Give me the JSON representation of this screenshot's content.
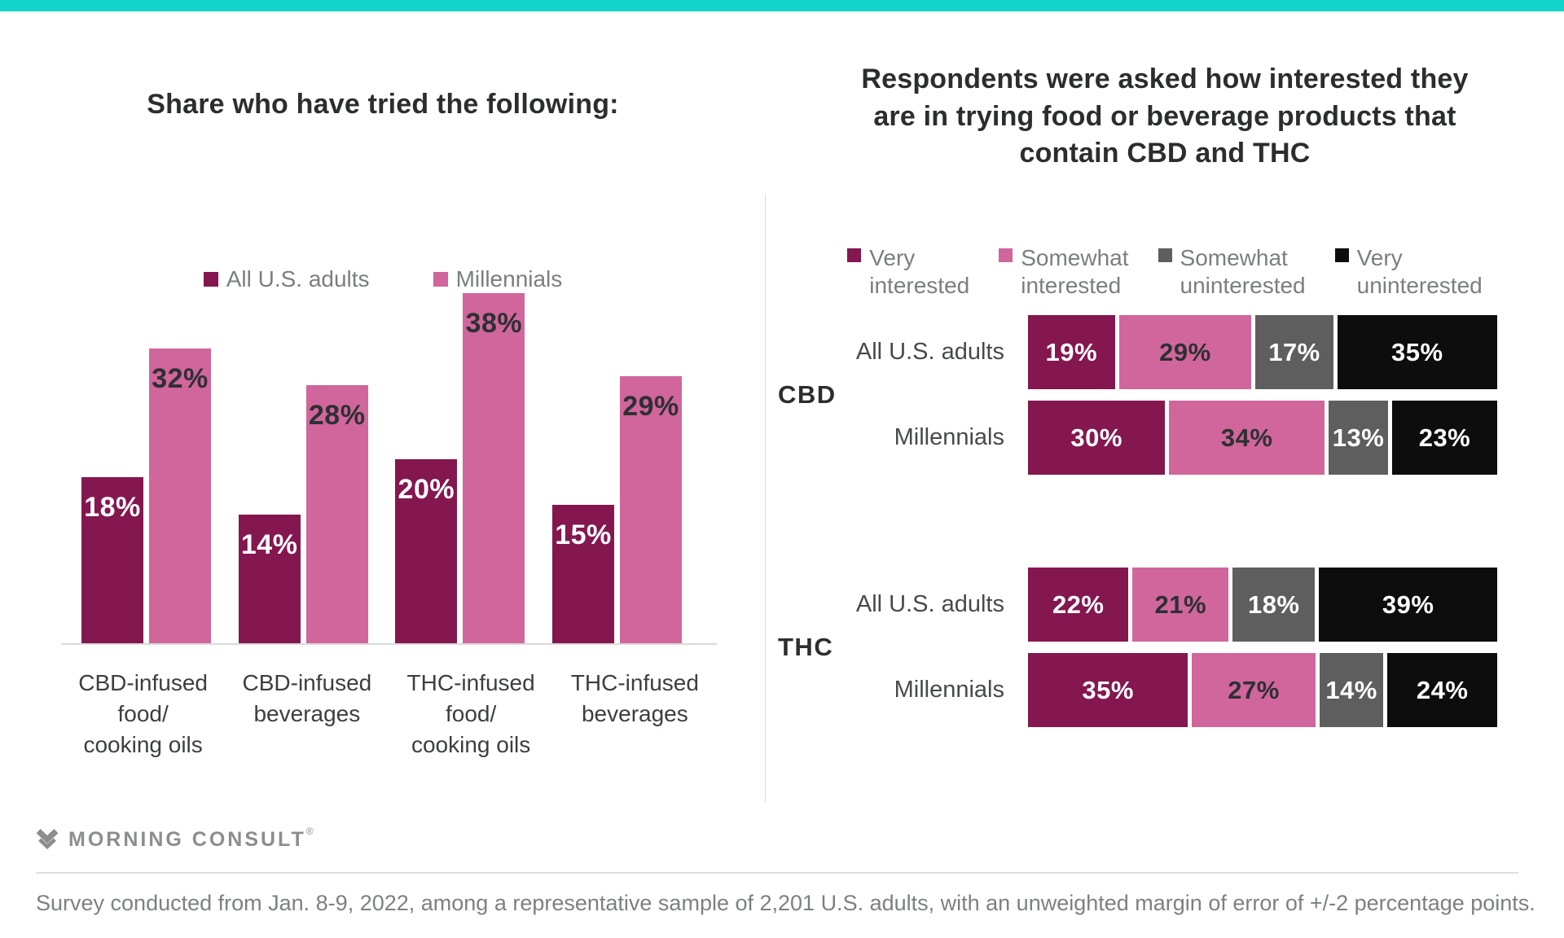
{
  "page": {
    "top_bar_color": "#11d3c9",
    "background": "#ffffff"
  },
  "chart_data": [
    {
      "type": "bar",
      "title": "Share who have tried the following:",
      "categories": [
        [
          "CBD-infused",
          "food/",
          "cooking oils"
        ],
        [
          "CBD-infused",
          "beverages"
        ],
        [
          "THC-infused",
          "food/",
          "cooking oils"
        ],
        [
          "THC-infused",
          "beverages"
        ]
      ],
      "series": [
        {
          "name": "All U.S. adults",
          "color": "#84174F",
          "label_color": "#FFFFFF",
          "values": [
            18,
            14,
            20,
            15
          ]
        },
        {
          "name": "Millennials",
          "color": "#D0669C",
          "label_color": "#2E3032",
          "values": [
            32,
            28,
            38,
            29
          ]
        }
      ],
      "value_suffix": "%",
      "ylim": [
        0,
        40
      ],
      "grid": false,
      "legend_position": "top"
    },
    {
      "type": "bar",
      "orientation": "horizontal-stacked",
      "title": "Respondents were asked how interested they are in trying food or beverage products that contain CBD and THC",
      "title_lines": [
        "Respondents were asked how interested they",
        "are in trying food or beverage products that",
        "contain CBD and THC"
      ],
      "legend": [
        {
          "lines": [
            "Very",
            "interested"
          ],
          "color": "#84174F"
        },
        {
          "lines": [
            "Somewhat",
            "interested"
          ],
          "color": "#D0669C"
        },
        {
          "lines": [
            "Somewhat",
            "uninterested"
          ],
          "color": "#5E5E5E"
        },
        {
          "lines": [
            "Very",
            "uninterested"
          ],
          "color": "#0D0D0D"
        }
      ],
      "segment_colors": [
        "#84174F",
        "#D0669C",
        "#5E5E5E",
        "#0D0D0D"
      ],
      "segment_label_colors": [
        "#FFFFFF",
        "#2E3032",
        "#FFFFFF",
        "#FFFFFF"
      ],
      "groups": [
        {
          "label": "CBD",
          "rows": [
            {
              "label": "All U.S. adults",
              "values": [
                19,
                29,
                17,
                35
              ]
            },
            {
              "label": "Millennials",
              "values": [
                30,
                34,
                13,
                23
              ]
            }
          ]
        },
        {
          "label": "THC",
          "rows": [
            {
              "label": "All U.S. adults",
              "values": [
                22,
                21,
                18,
                39
              ]
            },
            {
              "label": "Millennials",
              "values": [
                35,
                27,
                14,
                24
              ]
            }
          ]
        }
      ],
      "value_suffix": "%",
      "xlim": [
        0,
        100
      ],
      "legend_position": "top"
    }
  ],
  "footer": {
    "brand": "MORNING CONSULT",
    "registered_mark": "®",
    "note": "Survey conducted from Jan. 8-9, 2022, among a representative sample of 2,201 U.S. adults, with an unweighted margin of error of +/-2 percentage points."
  }
}
